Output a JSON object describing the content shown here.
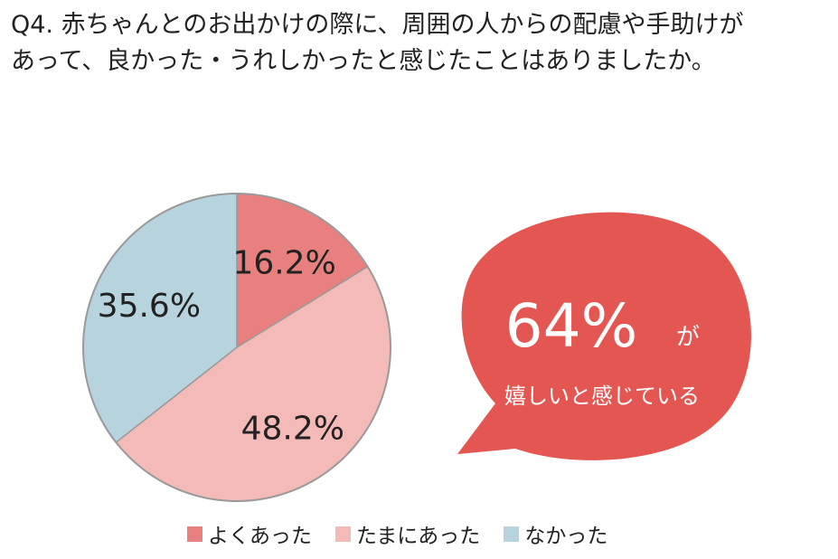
{
  "question": {
    "line1": "Q4. 赤ちゃんとのお出かけの際に、周囲の人からの配慮や手助けが",
    "line2": "あって、良かった・うれしかったと感じたことはありましたか。"
  },
  "chart_data": {
    "type": "pie",
    "categories": [
      "よくあった",
      "たまにあった",
      "なかった"
    ],
    "values": [
      16.2,
      48.2,
      35.6
    ],
    "labels": [
      "16.2%",
      "48.2%",
      "35.6%"
    ],
    "colors": [
      "#E98080",
      "#F4BAB8",
      "#B7D4DE"
    ],
    "start_angle": "12 o'clock",
    "direction": "clockwise",
    "legend_position": "bottom"
  },
  "callout": {
    "percent": "64%",
    "suffix": "が",
    "text": "嬉しいと感じている",
    "color": "#E45652"
  }
}
